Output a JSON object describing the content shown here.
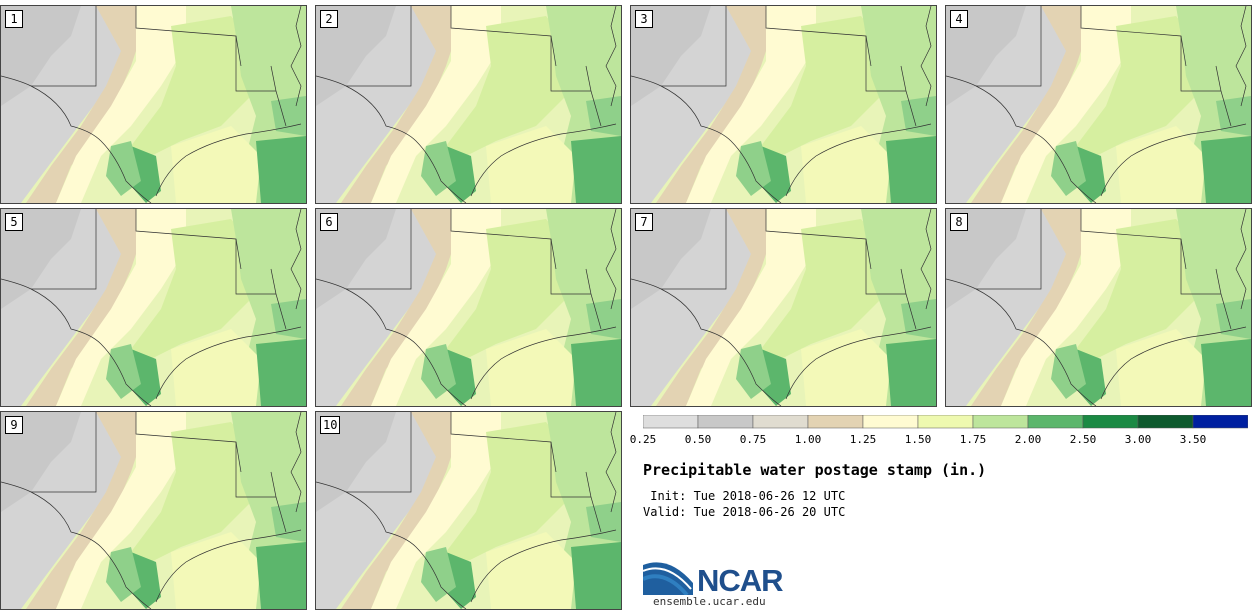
{
  "panels": [
    {
      "label": "1"
    },
    {
      "label": "2"
    },
    {
      "label": "3"
    },
    {
      "label": "4"
    },
    {
      "label": "5"
    },
    {
      "label": "6"
    },
    {
      "label": "7"
    },
    {
      "label": "8"
    },
    {
      "label": "9"
    },
    {
      "label": "10"
    }
  ],
  "colorbar": {
    "colors": [
      "#dedede",
      "#c8c8c8",
      "#e0dcd0",
      "#e3d3b3",
      "#fffbd2",
      "#eef9b0",
      "#bde59c",
      "#5cb66c",
      "#1b8a44",
      "#0e5a2e",
      "#0020a0"
    ],
    "ticks": [
      "0.25",
      "0.50",
      "0.75",
      "1.00",
      "1.25",
      "1.50",
      "1.75",
      "2.00",
      "2.50",
      "3.00",
      "3.50"
    ]
  },
  "title": "Precipitable water postage stamp (in.)",
  "init": " Init: Tue 2018-06-26 12 UTC",
  "valid": "Valid: Tue 2018-06-26 20 UTC",
  "logo_text": "NCAR",
  "url": "ensemble.ucar.edu"
}
